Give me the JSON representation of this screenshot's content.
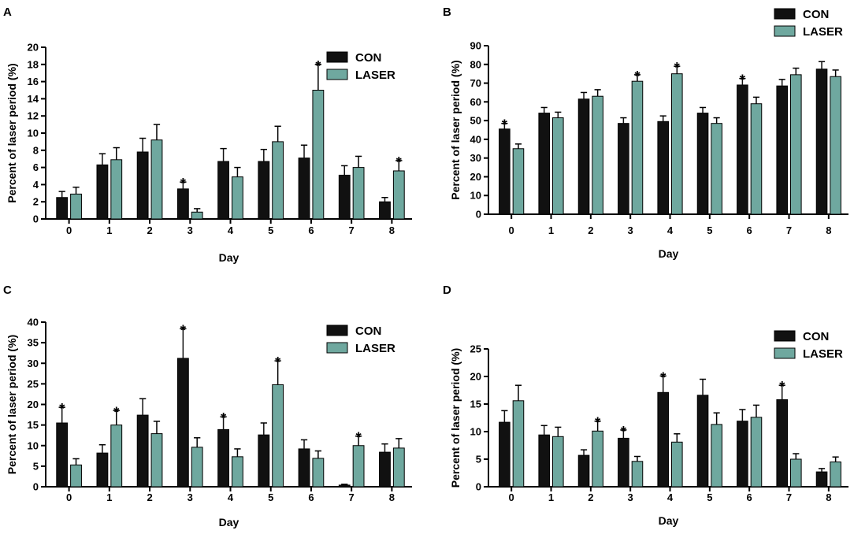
{
  "colors": {
    "con": "#111111",
    "laser": "#6fa89f",
    "axis": "#000000"
  },
  "chart_data": [
    {
      "type": "bar",
      "panel": "A",
      "categories": [
        "0",
        "1",
        "2",
        "3",
        "4",
        "5",
        "6",
        "7",
        "8"
      ],
      "series": [
        {
          "name": "CON",
          "values": [
            2.5,
            6.3,
            7.8,
            3.5,
            6.7,
            6.7,
            7.1,
            5.1,
            2.0
          ],
          "errors": [
            0.7,
            1.3,
            1.6,
            0.8,
            1.5,
            1.4,
            1.5,
            1.1,
            0.5
          ]
        },
        {
          "name": "LASER",
          "values": [
            2.9,
            6.9,
            9.2,
            0.8,
            4.9,
            9.0,
            15.0,
            6.0,
            5.6
          ],
          "errors": [
            0.8,
            1.4,
            1.8,
            0.4,
            1.1,
            1.8,
            3.0,
            1.3,
            1.2
          ]
        }
      ],
      "significance": [
        {
          "category": "3",
          "series": "CON"
        },
        {
          "category": "6",
          "series": "LASER"
        },
        {
          "category": "8",
          "series": "LASER"
        }
      ],
      "xlabel": "Day",
      "ylabel": "Percent of laser period (%)",
      "ylim": [
        0,
        20
      ],
      "yticks": [
        0,
        2,
        4,
        6,
        8,
        10,
        12,
        14,
        16,
        18,
        20
      ],
      "legend": [
        "CON",
        "LASER"
      ],
      "legend_position": "top-right"
    },
    {
      "type": "bar",
      "panel": "B",
      "categories": [
        "0",
        "1",
        "2",
        "3",
        "4",
        "5",
        "6",
        "7",
        "8"
      ],
      "series": [
        {
          "name": "CON",
          "values": [
            45.5,
            54.0,
            61.5,
            48.5,
            49.5,
            54.0,
            69.0,
            68.5,
            77.5
          ],
          "errors": [
            3.0,
            3.0,
            3.5,
            3.0,
            3.0,
            3.0,
            3.5,
            3.5,
            4.0
          ]
        },
        {
          "name": "LASER",
          "values": [
            35.0,
            51.5,
            63.0,
            71.0,
            75.0,
            48.5,
            59.0,
            74.5,
            73.5
          ],
          "errors": [
            2.5,
            3.0,
            3.5,
            3.5,
            4.0,
            3.0,
            3.5,
            3.5,
            3.5
          ]
        }
      ],
      "significance": [
        {
          "category": "0",
          "series": "CON"
        },
        {
          "category": "3",
          "series": "LASER"
        },
        {
          "category": "4",
          "series": "LASER"
        },
        {
          "category": "6",
          "series": "CON"
        }
      ],
      "xlabel": "Day",
      "ylabel": "Percent of laser period (%)",
      "ylim": [
        0,
        90
      ],
      "yticks": [
        0,
        10,
        20,
        30,
        40,
        50,
        60,
        70,
        80,
        90
      ],
      "legend": [
        "CON",
        "LASER"
      ],
      "legend_position": "top-right"
    },
    {
      "type": "bar",
      "panel": "C",
      "categories": [
        "0",
        "1",
        "2",
        "3",
        "4",
        "5",
        "6",
        "7",
        "8"
      ],
      "series": [
        {
          "name": "CON",
          "values": [
            15.5,
            8.2,
            17.4,
            31.2,
            13.9,
            12.6,
            9.2,
            0.4,
            8.4
          ],
          "errors": [
            3.8,
            2.0,
            4.0,
            7.2,
            3.1,
            2.9,
            2.2,
            0.2,
            2.0
          ]
        },
        {
          "name": "LASER",
          "values": [
            5.3,
            15.0,
            12.9,
            9.6,
            7.3,
            24.8,
            6.9,
            10.0,
            9.4
          ],
          "errors": [
            1.5,
            3.5,
            3.0,
            2.3,
            1.9,
            5.8,
            1.8,
            2.3,
            2.3
          ]
        }
      ],
      "significance": [
        {
          "category": "0",
          "series": "CON"
        },
        {
          "category": "1",
          "series": "LASER"
        },
        {
          "category": "3",
          "series": "CON"
        },
        {
          "category": "4",
          "series": "CON"
        },
        {
          "category": "5",
          "series": "LASER"
        },
        {
          "category": "7",
          "series": "LASER"
        }
      ],
      "xlabel": "Day",
      "ylabel": "Percent of laser period (%)",
      "ylim": [
        0,
        40
      ],
      "yticks": [
        0,
        5,
        10,
        15,
        20,
        25,
        30,
        35,
        40
      ],
      "legend": [
        "CON",
        "LASER"
      ],
      "legend_position": "top-right"
    },
    {
      "type": "bar",
      "panel": "D",
      "categories": [
        "0",
        "1",
        "2",
        "3",
        "4",
        "5",
        "6",
        "7",
        "8"
      ],
      "series": [
        {
          "name": "CON",
          "values": [
            11.7,
            9.4,
            5.7,
            8.8,
            17.1,
            16.6,
            11.9,
            15.8,
            2.7
          ],
          "errors": [
            2.1,
            1.7,
            1.0,
            1.5,
            3.0,
            2.9,
            2.1,
            2.6,
            0.6
          ]
        },
        {
          "name": "LASER",
          "values": [
            15.6,
            9.1,
            10.1,
            4.6,
            8.1,
            11.3,
            12.6,
            5.0,
            4.5
          ],
          "errors": [
            2.8,
            1.7,
            1.8,
            0.9,
            1.5,
            2.1,
            2.2,
            1.0,
            0.9
          ]
        }
      ],
      "significance": [
        {
          "category": "2",
          "series": "LASER"
        },
        {
          "category": "3",
          "series": "CON"
        },
        {
          "category": "4",
          "series": "CON"
        },
        {
          "category": "7",
          "series": "CON"
        }
      ],
      "xlabel": "Day",
      "ylabel": "Percent of laser period (%)",
      "ylim": [
        0,
        25
      ],
      "yticks": [
        0,
        5,
        10,
        15,
        20,
        25
      ],
      "legend": [
        "CON",
        "LASER"
      ],
      "legend_position": "top-right"
    }
  ],
  "significance_marker": "*"
}
